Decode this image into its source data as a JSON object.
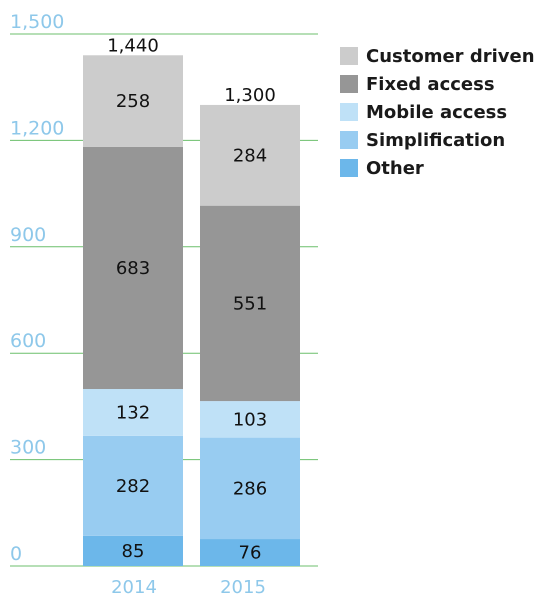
{
  "chart_data": {
    "type": "bar",
    "stacked": true,
    "categories": [
      "2014",
      "2015"
    ],
    "series": [
      {
        "name": "Other",
        "values": [
          85,
          76
        ],
        "color": "#6cb7ea"
      },
      {
        "name": "Simplification",
        "values": [
          282,
          286
        ],
        "color": "#98ccf1"
      },
      {
        "name": "Mobile access",
        "values": [
          132,
          103
        ],
        "color": "#bfe1f7"
      },
      {
        "name": "Fixed access",
        "values": [
          683,
          551
        ],
        "color": "#969696"
      },
      {
        "name": "Customer driven",
        "values": [
          258,
          284
        ],
        "color": "#cccccc"
      }
    ],
    "totals": [
      "1,440",
      "1,300"
    ],
    "yticks": [
      "0",
      "300",
      "600",
      "900",
      "1,200",
      "1,500"
    ],
    "ylim": [
      0,
      1500
    ],
    "grid": true,
    "grid_color": "#6cbf6c",
    "axis_label_color": "#8ec8ea",
    "legend_position": "top-right",
    "legend": [
      "Customer driven",
      "Fixed access",
      "Mobile access",
      "Simplification",
      "Other"
    ]
  }
}
